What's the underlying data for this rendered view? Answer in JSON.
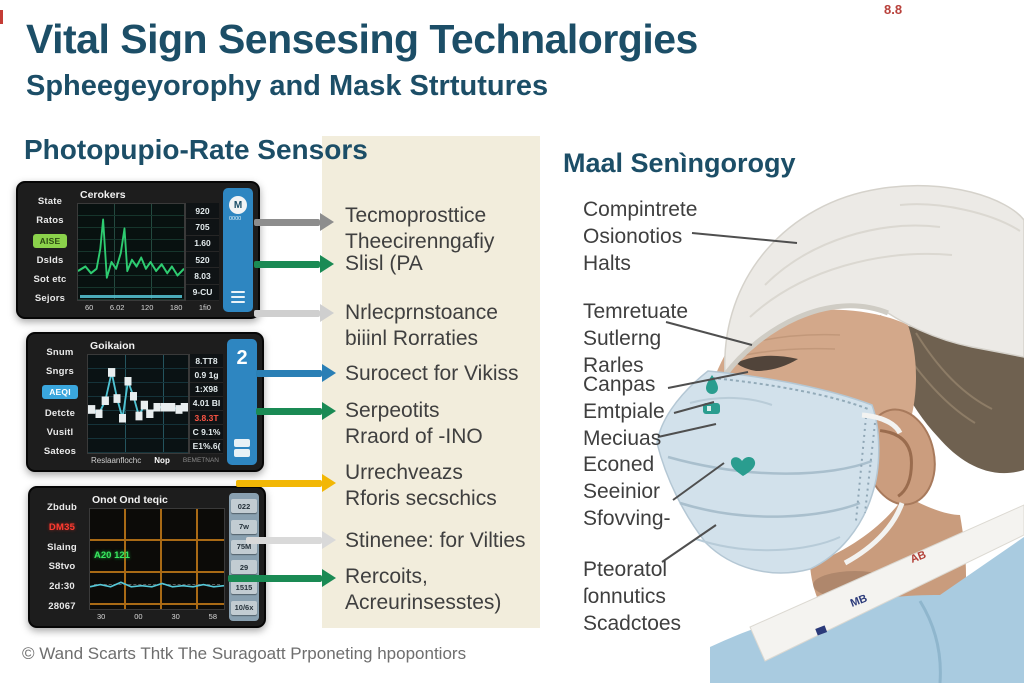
{
  "header": {
    "title": "Vital Sign Sensesing Technalorgies",
    "subtitle": "Spheegeyorophy and Mask Strtutures",
    "corner_mark": "8.8"
  },
  "footer": {
    "text": "© Wand Scarts Thtk The Suragoatt Prponeting hpopontiors"
  },
  "left_section": {
    "heading": "Photopupio-Rate Sensors",
    "monitors": [
      {
        "side_top": [
          "State",
          "Ratos"
        ],
        "button": "AISE",
        "side_bottom": [
          "Dslds",
          "Sot etc",
          "Sejors"
        ],
        "title": "Cerokers",
        "readings": [
          "920",
          "705",
          "1.60",
          "520",
          "8.03",
          "9-CU"
        ],
        "x_ticks": [
          "60",
          "6.02",
          "120",
          "180",
          "1fi0"
        ],
        "panel_icon": "M",
        "panel_sub": "0000",
        "waveform": [
          [
            0,
            60
          ],
          [
            8,
            56
          ],
          [
            14,
            62
          ],
          [
            20,
            58
          ],
          [
            24,
            40
          ],
          [
            27,
            14
          ],
          [
            31,
            66
          ],
          [
            36,
            52
          ],
          [
            41,
            58
          ],
          [
            46,
            44
          ],
          [
            50,
            22
          ],
          [
            53,
            60
          ],
          [
            58,
            50
          ],
          [
            63,
            56
          ],
          [
            68,
            48
          ],
          [
            73,
            58
          ],
          [
            78,
            52
          ],
          [
            84,
            60
          ],
          [
            90,
            54
          ],
          [
            96,
            62
          ],
          [
            101,
            56
          ],
          [
            107,
            64
          ],
          [
            114,
            58
          ]
        ]
      },
      {
        "side_top": [
          "Snum",
          "Sngrs"
        ],
        "button": "AEQI",
        "side_bottom": [
          "Detcte",
          "Vusitl",
          "Sateos"
        ],
        "title": "Goikaion",
        "readings": [
          "8.TT8",
          "0.9 1g",
          "1:X98",
          "4.01 BI",
          "3.8.3T",
          "C 9.1%",
          "E1%.6("
        ],
        "panel_number": "2",
        "footer_left": "Reslaanflochc",
        "footer_mid": "Nop",
        "footer_right": "BEMETNAN",
        "waveform": [
          [
            4,
            50
          ],
          [
            12,
            54
          ],
          [
            19,
            42
          ],
          [
            26,
            16
          ],
          [
            32,
            40
          ],
          [
            38,
            58
          ],
          [
            44,
            24
          ],
          [
            50,
            38
          ],
          [
            56,
            56
          ],
          [
            62,
            46
          ],
          [
            68,
            54
          ],
          [
            76,
            48
          ],
          [
            84,
            48
          ],
          [
            92,
            48
          ],
          [
            100,
            50
          ],
          [
            106,
            48
          ]
        ]
      },
      {
        "side_labels": [
          "Zbdub",
          "DM35",
          "Slaing",
          "S8tvo",
          "2d:30",
          "28067"
        ],
        "title": "Onot Ond teqic",
        "green_readout": "A20 121",
        "x_ticks": [
          "30",
          "00",
          "30",
          "58"
        ],
        "buttons": [
          "022",
          "7w",
          "75M",
          "29",
          "1515",
          "10/6x"
        ],
        "waveform": [
          [
            0,
            70
          ],
          [
            10,
            68
          ],
          [
            20,
            70
          ],
          [
            30,
            66
          ],
          [
            40,
            70
          ],
          [
            50,
            69
          ],
          [
            60,
            70
          ],
          [
            70,
            67
          ],
          [
            80,
            70
          ],
          [
            90,
            69
          ],
          [
            100,
            70
          ],
          [
            110,
            68
          ],
          [
            120,
            70
          ],
          [
            130,
            69
          ]
        ]
      }
    ],
    "callouts": [
      {
        "text": "Tecmoprosttice\nTheecirenngafiy",
        "arrow_color": "#8d8d8d"
      },
      {
        "text": "Slisl (PA",
        "arrow_color": "#1a8a54"
      },
      {
        "text": "Nrlecprnstoance\nbiiinl Rorraties",
        "arrow_color": "#cfcfcf"
      },
      {
        "text": "Surocect for Vikiss",
        "arrow_color": "#2a7fb5"
      },
      {
        "text": "Serpeotits\nRraord of -INO",
        "arrow_color": "#1a8a54"
      },
      {
        "text": "Urrechveazs\nRforis secschics",
        "arrow_color": "#f2b705"
      },
      {
        "text": "Stinenee: for Vilties",
        "arrow_color": "#d9d9d9"
      },
      {
        "text": "Rercoits,\nAcreurinsesstes)",
        "arrow_color": "#1a8a54"
      }
    ]
  },
  "right_section": {
    "heading": "Maal Senìngorogy",
    "callouts": [
      {
        "text": "Compintrete\nOsionotios\nHalts"
      },
      {
        "text": "Temretuate\nSutlerng\nRarles"
      },
      {
        "text": "Canpas\nEmtpiale\nMeciuas"
      },
      {
        "text": "Econed\nSeeinior\nSfovving-"
      },
      {
        "text": "Pteoratol\nſonnutics\nScadctoes"
      }
    ],
    "collar_tags": {
      "red": "AB",
      "navy": "MB"
    }
  },
  "colors": {
    "heading": "#1c4e67",
    "label_text": "#3f3f3f",
    "cream_panel": "#f2eddc",
    "monitor_panel_blue": "#2e86c1",
    "wave_green": "#2ecc71",
    "wave_cyan": "#4fc3d3",
    "grid_orange": "#a96a15",
    "mask_teal": "#2a9d8f"
  }
}
